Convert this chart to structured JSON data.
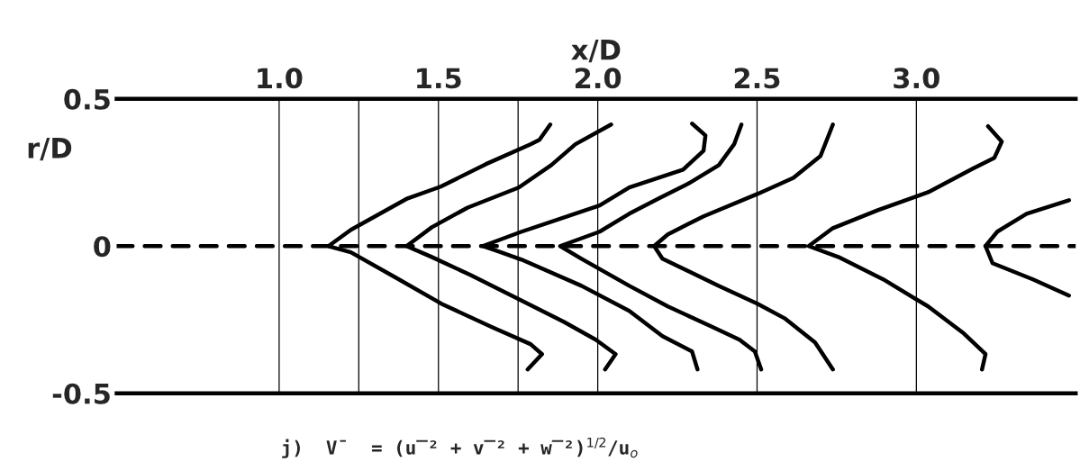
{
  "chart_data": {
    "type": "line",
    "xlabel": "x/D",
    "ylabel": "r/D",
    "annotations": [
      "j)  V̄  = (u̅² + v̅² + w̅²)$^{1/2}$/u$_{o}$"
    ],
    "xlim": [
      0.49,
      3.5
    ],
    "ylim": [
      -0.5,
      0.5
    ],
    "xticks": [
      {
        "value": 1.0,
        "label": "1.0"
      },
      {
        "value": 1.25,
        "label": null
      },
      {
        "value": 1.5,
        "label": "1.5"
      },
      {
        "value": 1.75,
        "label": null
      },
      {
        "value": 2.0,
        "label": "2.0"
      },
      {
        "value": 2.5,
        "label": "2.5"
      },
      {
        "value": 3.0,
        "label": "3.0"
      }
    ],
    "yticks": [
      {
        "value": -0.5,
        "label": "-0.5"
      },
      0,
      0.5
    ],
    "grid": "x",
    "marker": "none",
    "line_style": "solid",
    "ref_lines": [
      {
        "axis": "y",
        "value": 0,
        "color": "#000000",
        "line_style": "dashed"
      }
    ],
    "series": [
      {
        "color": "#000000",
        "x": [
          1.851,
          1.817,
          1.789,
          1.648,
          1.507,
          1.403,
          1.225,
          1.155,
          1.225,
          1.366,
          1.515,
          1.668,
          1.789,
          1.825,
          1.78
        ],
        "values": [
          0.413,
          0.361,
          0.346,
          0.278,
          0.202,
          0.162,
          0.055,
          0,
          -0.021,
          -0.107,
          -0.199,
          -0.275,
          -0.333,
          -0.367,
          -0.419
        ]
      },
      {
        "color": "#000000",
        "x": [
          2.042,
          1.93,
          1.854,
          1.752,
          1.592,
          1.479,
          1.4,
          1.479,
          1.6,
          1.741,
          1.893,
          1.994,
          2.056,
          2.023
        ],
        "values": [
          0.413,
          0.346,
          0.275,
          0.199,
          0.131,
          0.064,
          0,
          -0.037,
          -0.098,
          -0.174,
          -0.257,
          -0.318,
          -0.367,
          -0.419
        ]
      },
      {
        "color": "#000000",
        "x": [
          2.296,
          2.338,
          2.332,
          2.268,
          2.099,
          2.006,
          1.761,
          1.639,
          1.696,
          1.761,
          1.949,
          2.099,
          2.203,
          2.296,
          2.313
        ],
        "values": [
          0.416,
          0.376,
          0.324,
          0.26,
          0.199,
          0.138,
          0.049,
          0,
          -0.021,
          -0.046,
          -0.135,
          -0.22,
          -0.306,
          -0.358,
          -0.419
        ]
      },
      {
        "color": "#000000",
        "x": [
          2.451,
          2.428,
          2.38,
          2.287,
          2.192,
          2.099,
          2.006,
          1.882,
          1.949,
          2.099,
          2.22,
          2.361,
          2.445,
          2.493,
          2.513
        ],
        "values": [
          0.413,
          0.346,
          0.275,
          0.214,
          0.162,
          0.11,
          0.049,
          0,
          -0.043,
          -0.135,
          -0.205,
          -0.275,
          -0.318,
          -0.358,
          -0.419
        ]
      },
      {
        "color": "#000000",
        "x": [
          2.738,
          2.699,
          2.614,
          2.501,
          2.332,
          2.22,
          2.177,
          2.203,
          2.38,
          2.501,
          2.586,
          2.682,
          2.738
        ],
        "values": [
          0.413,
          0.306,
          0.232,
          0.177,
          0.101,
          0.04,
          0,
          -0.043,
          -0.135,
          -0.196,
          -0.245,
          -0.327,
          -0.419
        ]
      },
      {
        "color": "#000000",
        "x": [
          3.225,
          3.268,
          3.245,
          3.177,
          3.037,
          2.879,
          2.738,
          2.662,
          2.755,
          2.896,
          3.037,
          3.149,
          3.217,
          3.206
        ],
        "values": [
          0.407,
          0.355,
          0.3,
          0.263,
          0.183,
          0.122,
          0.061,
          0,
          -0.037,
          -0.113,
          -0.205,
          -0.297,
          -0.367,
          -0.419
        ]
      },
      {
        "color": "#000000",
        "x": [
          3.479,
          3.346,
          3.254,
          3.217,
          3.239,
          3.366,
          3.479
        ],
        "values": [
          0.156,
          0.11,
          0.049,
          0,
          -0.058,
          -0.113,
          -0.168
        ]
      }
    ]
  }
}
